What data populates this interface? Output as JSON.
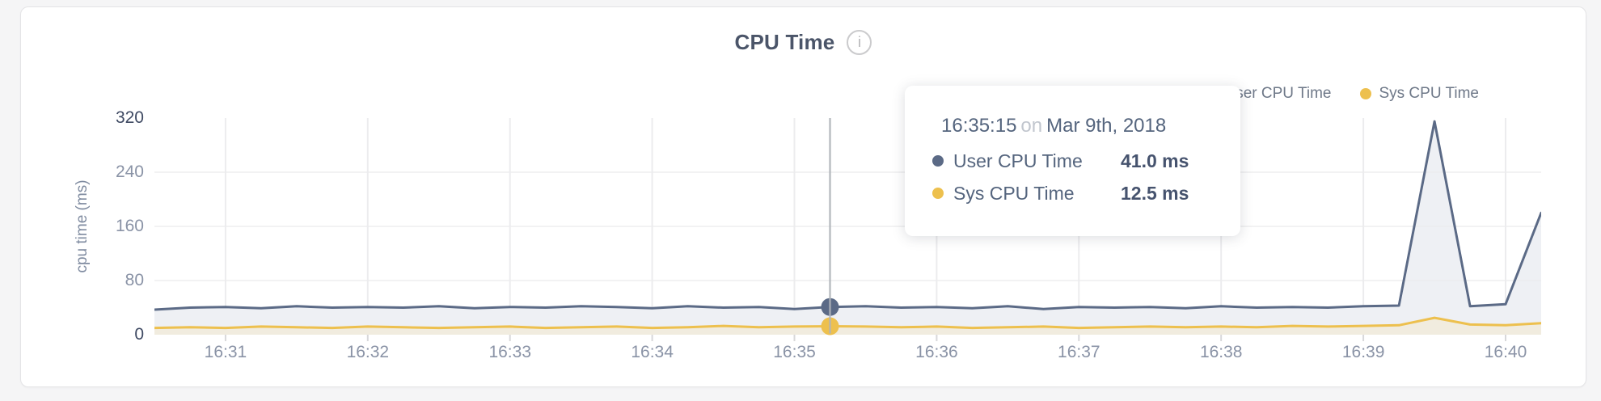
{
  "card": {
    "title": "CPU Time",
    "info_icon_glyph": "i"
  },
  "tooltip": {
    "time": "16:35:15",
    "conjunction": "on",
    "date": "Mar 9th, 2018",
    "rows": [
      {
        "name": "User CPU Time",
        "value": "41.0 ms"
      },
      {
        "name": "Sys CPU Time",
        "value": "12.5 ms"
      }
    ]
  },
  "colors": {
    "user_line": "#5b6a86",
    "user_fill": "#eef0f4",
    "sys_line": "#edc04e",
    "sys_fill": "#f1ecdf",
    "grid": "#ececee",
    "tick_stub": "#d8d8da",
    "crosshair": "#b0b4ba",
    "axis_text": "#8a93a6",
    "axis_text_strong": "#3f4a63"
  },
  "chart_data": {
    "type": "area",
    "title": "CPU Time",
    "xlabel": "",
    "ylabel": "cpu time (ms)",
    "ylim": [
      0,
      320
    ],
    "y_ticks": [
      0,
      80,
      160,
      240,
      320
    ],
    "x_ticks": [
      "16:31",
      "16:32",
      "16:33",
      "16:34",
      "16:35",
      "16:36",
      "16:37",
      "16:38",
      "16:39",
      "16:40"
    ],
    "grid": true,
    "legend_position": "top-right",
    "x": [
      "16:30:30",
      "16:30:45",
      "16:31:00",
      "16:31:15",
      "16:31:30",
      "16:31:45",
      "16:32:00",
      "16:32:15",
      "16:32:30",
      "16:32:45",
      "16:33:00",
      "16:33:15",
      "16:33:30",
      "16:33:45",
      "16:34:00",
      "16:34:15",
      "16:34:30",
      "16:34:45",
      "16:35:00",
      "16:35:15",
      "16:35:30",
      "16:35:45",
      "16:36:00",
      "16:36:15",
      "16:36:30",
      "16:36:45",
      "16:37:00",
      "16:37:15",
      "16:37:30",
      "16:37:45",
      "16:38:00",
      "16:38:15",
      "16:38:30",
      "16:38:45",
      "16:39:00",
      "16:39:15",
      "16:39:30",
      "16:39:45",
      "16:40:00",
      "16:40:15"
    ],
    "series": [
      {
        "name": "User CPU Time",
        "color": "#5b6a86",
        "fill": "#eef0f4",
        "values": [
          37,
          40,
          41,
          39,
          42,
          40,
          41,
          40,
          42,
          39,
          41,
          40,
          42,
          41,
          39,
          42,
          40,
          41,
          38,
          41,
          42,
          40,
          41,
          39,
          42,
          38,
          41,
          40,
          41,
          39,
          42,
          40,
          41,
          40,
          42,
          43,
          315,
          42,
          45,
          180
        ]
      },
      {
        "name": "Sys CPU Time",
        "color": "#edc04e",
        "fill": "#f1ecdf",
        "values": [
          10,
          11,
          10,
          12,
          11,
          10,
          12,
          11,
          10,
          11,
          12,
          10,
          11,
          12,
          10,
          11,
          13,
          11,
          12,
          12.5,
          12,
          11,
          12,
          10,
          11,
          12,
          10,
          11,
          12,
          11,
          12,
          11,
          13,
          12,
          13,
          14,
          25,
          15,
          14,
          17
        ]
      }
    ],
    "hover": {
      "x": "16:35:15",
      "values": [
        41.0,
        12.5
      ]
    }
  }
}
